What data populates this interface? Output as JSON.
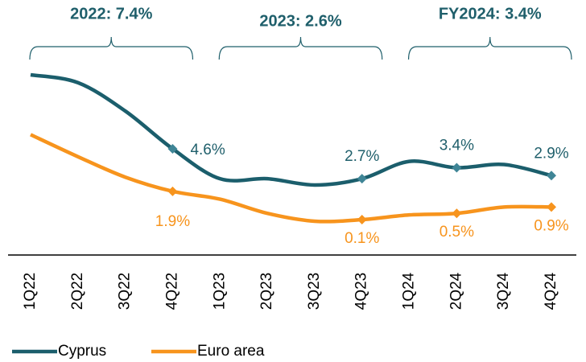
{
  "chart_data": {
    "type": "line",
    "categories": [
      "1Q22",
      "2Q22",
      "3Q22",
      "4Q22",
      "1Q23",
      "2Q23",
      "3Q23",
      "4Q23",
      "1Q24",
      "2Q24",
      "3Q24",
      "4Q24"
    ],
    "series": [
      {
        "name": "Cyprus",
        "color": "#1b5e6c",
        "values": [
          9.3,
          8.8,
          7.0,
          4.6,
          2.7,
          2.7,
          2.3,
          2.7,
          3.8,
          3.4,
          3.6,
          2.9
        ],
        "value_labels": [
          null,
          null,
          null,
          "4.6%",
          null,
          null,
          null,
          "2.7%",
          null,
          "3.4%",
          null,
          "2.9%"
        ]
      },
      {
        "name": "Euro area",
        "color": "#f7941d",
        "values": [
          5.5,
          4.1,
          2.8,
          1.9,
          1.4,
          0.5,
          0.0,
          0.1,
          0.4,
          0.5,
          0.9,
          0.9
        ],
        "value_labels": [
          null,
          null,
          null,
          "1.9%",
          null,
          null,
          null,
          "0.1%",
          null,
          "0.5%",
          null,
          "0.9%"
        ]
      }
    ],
    "annotations": [
      {
        "text": "2022: 7.4%",
        "start": "1Q22",
        "end": "4Q22"
      },
      {
        "text": "2023: 2.6%",
        "start": "1Q23",
        "end": "4Q23"
      },
      {
        "text": "FY2024: 3.4%",
        "start": "1Q24",
        "end": "4Q24"
      }
    ]
  }
}
